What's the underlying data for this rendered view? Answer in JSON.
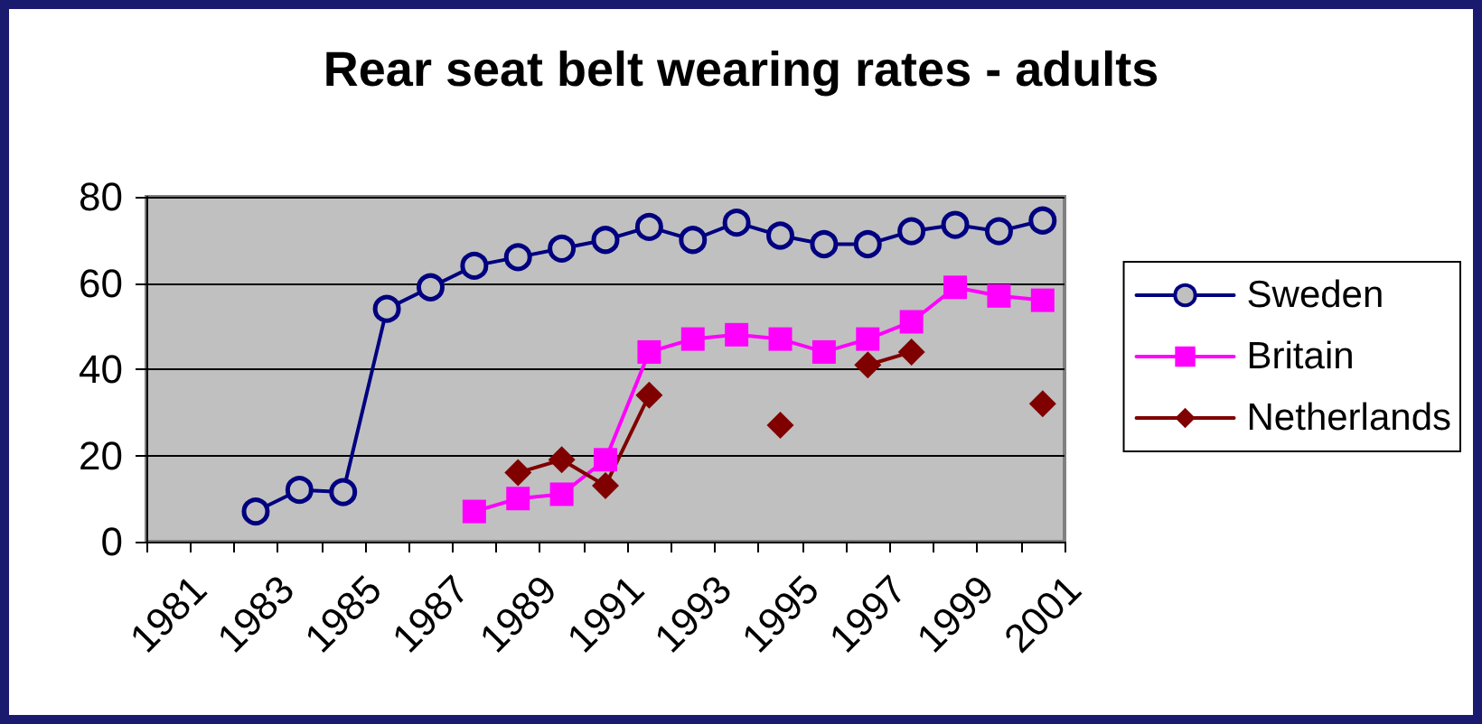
{
  "chart_data": {
    "type": "line",
    "title": "Rear seat belt wearing rates - adults",
    "categories": [
      "1981",
      null,
      "1983",
      null,
      "1985",
      null,
      "1987",
      null,
      "1989",
      null,
      "1991",
      null,
      "1993",
      null,
      "1995",
      null,
      "1997",
      null,
      "1999",
      null,
      "2001"
    ],
    "series": [
      {
        "name": "Sweden",
        "color": "#000080",
        "marker": "circle",
        "values": [
          null,
          null,
          7,
          12,
          11.5,
          54,
          59,
          64,
          66,
          68,
          70,
          73,
          70,
          74,
          71,
          69,
          69,
          72,
          73.5,
          72,
          74.5
        ]
      },
      {
        "name": "Britain",
        "color": "#ff00ff",
        "marker": "square",
        "values": [
          null,
          null,
          null,
          null,
          null,
          null,
          null,
          7,
          10,
          11,
          19,
          44,
          47,
          48,
          47,
          44,
          47,
          51,
          59,
          57,
          56
        ]
      },
      {
        "name": "Netherlands",
        "color": "#800000",
        "marker": "diamond",
        "values": [
          null,
          null,
          null,
          null,
          null,
          null,
          null,
          null,
          16,
          19,
          13,
          34,
          null,
          null,
          27,
          null,
          41,
          44,
          null,
          null,
          32
        ]
      }
    ],
    "ylim": [
      0,
      80
    ],
    "yticks": [
      0,
      20,
      40,
      60,
      80
    ],
    "grid": "y",
    "legend": "right"
  }
}
